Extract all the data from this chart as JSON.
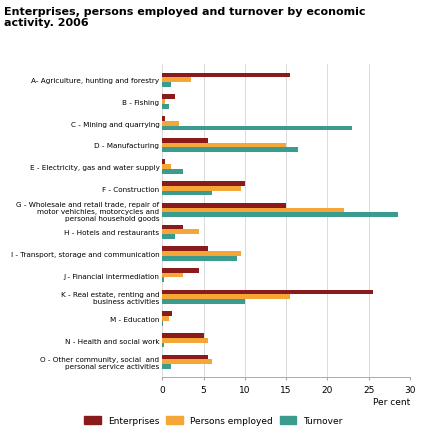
{
  "title": "Enterprises, persons employed and turnover by economic\nactivity. 2006",
  "categories": [
    "A- Agriculture, hunting and forestry",
    "B - Fishing",
    "C - Mining and quarrying",
    "D - Manufacturing",
    "E - Electricity, gas and water supply",
    "F - Construction",
    "G - Wholesale and retail trade, repair of\nmotor vehichles, motorcycles and\npersonal household goods",
    "H - Hotels and restaurants",
    "I - Transport, storage and communication",
    "J - Financial intermediation",
    "K - Real estate, renting and\nbusiness activities",
    "M - Education",
    "N - Health and social work",
    "O - Other community, social  and\npersonal service activities"
  ],
  "enterprises": [
    15.5,
    1.5,
    0.3,
    5.5,
    0.3,
    10.0,
    15.0,
    2.5,
    5.5,
    4.5,
    25.5,
    1.2,
    5.0,
    5.5
  ],
  "persons_employed": [
    3.5,
    0.3,
    2.0,
    15.0,
    1.0,
    9.5,
    22.0,
    4.5,
    9.5,
    2.5,
    15.5,
    0.8,
    5.5,
    6.0
  ],
  "turnover": [
    1.0,
    0.8,
    23.0,
    16.5,
    2.5,
    6.0,
    28.5,
    1.5,
    9.0,
    0.2,
    10.0,
    0.1,
    0.2,
    1.0
  ],
  "color_enterprises": "#8B1A1A",
  "color_persons": "#F4A636",
  "color_turnover": "#3A9B8E",
  "xlim": [
    0,
    30
  ],
  "xticks": [
    0,
    5,
    10,
    15,
    20,
    25,
    30
  ],
  "xlabel": "Per cent",
  "background_color": "#ffffff",
  "grid_color": "#cccccc",
  "title_fontsize": 8,
  "label_fontsize": 5.2,
  "tick_fontsize": 6.5
}
